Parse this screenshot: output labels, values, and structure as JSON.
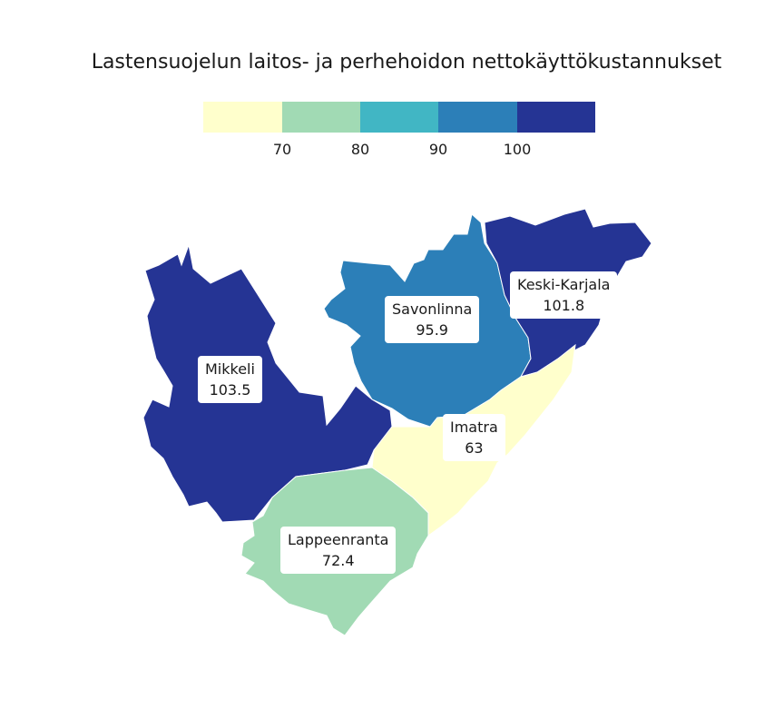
{
  "title": "Lastensuojelun laitos- ja perhehoidon nettokäyttökustannukset",
  "legend": {
    "bins": [
      {
        "color": "#ffffcc"
      },
      {
        "color": "#a1dab4"
      },
      {
        "color": "#41b6c4"
      },
      {
        "color": "#2c7fb8"
      },
      {
        "color": "#253494"
      }
    ],
    "breaks": [
      "70",
      "80",
      "90",
      "100"
    ]
  },
  "regions": [
    {
      "name": "Mikkeli",
      "value": "103.5",
      "color": "#253494"
    },
    {
      "name": "Savonlinna",
      "value": "95.9",
      "color": "#2c7fb8"
    },
    {
      "name": "Keski-Karjala",
      "value": "101.8",
      "color": "#253494"
    },
    {
      "name": "Imatra",
      "value": "63",
      "color": "#ffffcc"
    },
    {
      "name": "Lappeenranta",
      "value": "72.4",
      "color": "#a1dab4"
    }
  ]
}
